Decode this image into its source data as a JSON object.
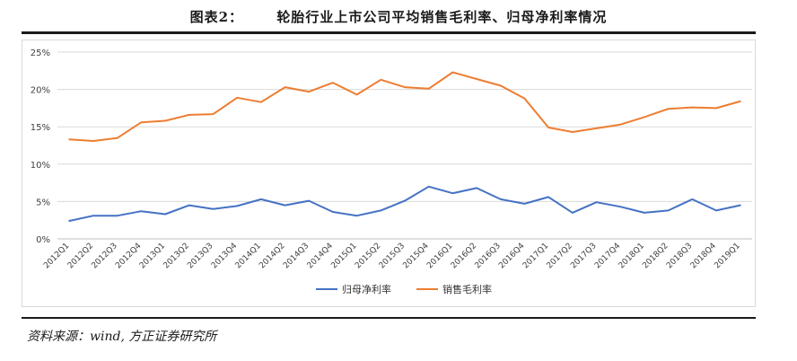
{
  "figure": {
    "title": "图表2：      轮胎行业上市公司平均销售毛利率、归母净利率情况",
    "source": "资料来源：wind, 方正证券研究所"
  },
  "chart_data": {
    "type": "line",
    "categories": [
      "2012Q1",
      "2012Q2",
      "2012Q3",
      "2012Q4",
      "2013Q1",
      "2013Q2",
      "2013Q3",
      "2013Q4",
      "2014Q1",
      "2014Q2",
      "2014Q3",
      "2014Q4",
      "2015Q1",
      "2015Q2",
      "2015Q3",
      "2015Q4",
      "2016Q1",
      "2016Q2",
      "2016Q3",
      "2016Q4",
      "2017Q1",
      "2017Q2",
      "2017Q3",
      "2017Q4",
      "2018Q1",
      "2018Q2",
      "2018Q3",
      "2018Q4",
      "2019Q1"
    ],
    "series": [
      {
        "name": "归母净利率",
        "color": "#4472c4",
        "values": [
          2.4,
          3.1,
          3.1,
          3.7,
          3.3,
          4.5,
          4.0,
          4.4,
          5.3,
          4.5,
          5.1,
          3.6,
          3.1,
          3.8,
          5.1,
          7.0,
          6.1,
          6.8,
          5.3,
          4.7,
          5.6,
          3.5,
          4.9,
          4.3,
          3.5,
          3.8,
          5.3,
          3.8,
          4.5
        ]
      },
      {
        "name": "销售毛利率",
        "color": "#ed7d31",
        "values": [
          13.3,
          13.1,
          13.5,
          15.6,
          15.8,
          16.6,
          16.7,
          18.9,
          18.3,
          20.3,
          19.7,
          20.9,
          19.3,
          21.3,
          20.3,
          20.1,
          22.3,
          21.4,
          20.5,
          18.8,
          14.9,
          14.3,
          14.8,
          15.3,
          16.3,
          17.4,
          17.6,
          17.5,
          18.4
        ]
      }
    ],
    "yticks": [
      "0%",
      "5%",
      "10%",
      "15%",
      "20%",
      "25%"
    ],
    "ylim": [
      0,
      25
    ],
    "grid": true,
    "legend": "bottom-center"
  }
}
